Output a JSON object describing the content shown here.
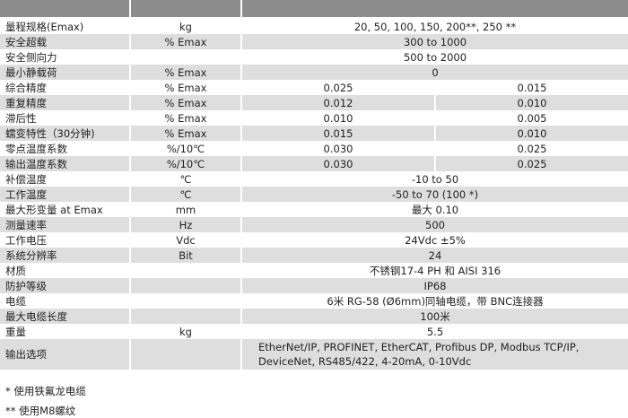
{
  "rows": [
    {
      "label": "量程规格(Emax)",
      "unit": "kg",
      "value": "20, 50, 100, 150, 200**, 250 **"
    },
    {
      "label": "安全超载",
      "unit": "% Emax",
      "value": "300 to 1000"
    },
    {
      "label": "安全侧向力",
      "unit": "",
      "value": "500 to 2000"
    },
    {
      "label": "最小静载荷",
      "unit": "% Emax",
      "value": "0"
    },
    {
      "label": "综合精度",
      "unit": "% Emax",
      "values": [
        "0.025",
        "0.015"
      ]
    },
    {
      "label": "重复精度",
      "unit": "% Emax",
      "values": [
        "0.012",
        "0.010"
      ]
    },
    {
      "label": "滞后性",
      "unit": "% Emax",
      "values": [
        "0.010",
        "0.005"
      ]
    },
    {
      "label": "蠕变特性（30分钟)",
      "unit": "% Emax",
      "values": [
        "0.015",
        "0.010"
      ]
    },
    {
      "label": "零点温度系数",
      "unit": "%/10℃",
      "values": [
        "0.030",
        "0.025"
      ]
    },
    {
      "label": "输出温度系数",
      "unit": "%/10℃",
      "values": [
        "0.030",
        "0.025"
      ]
    },
    {
      "label": "补偿温度",
      "unit": "℃",
      "value": "-10 to 50"
    },
    {
      "label": "工作温度",
      "unit": "℃",
      "value": "-50 to 70 (100 *)"
    },
    {
      "label": "最大形变量 at Emax",
      "unit": "mm",
      "value": "最大 0.10"
    },
    {
      "label": "测量速率",
      "unit": "Hz",
      "value": "500"
    },
    {
      "label": "工作电压",
      "unit": "Vdc",
      "value": "24Vdc ±5%"
    },
    {
      "label": "系统分辨率",
      "unit": "Bit",
      "value": "24"
    },
    {
      "label": "材质",
      "unit": "",
      "value": "不锈钢17-4 PH 和 AISI 316"
    },
    {
      "label": "防护等级",
      "unit": "",
      "value": "IP68"
    },
    {
      "label": "电缆",
      "unit": "",
      "value": "6米 RG-58 (Ø6mm)同轴电缆，带 BNC连接器"
    },
    {
      "label": "最大电缆长度",
      "unit": "",
      "value": "100米"
    },
    {
      "label": "重量",
      "unit": "kg",
      "value": "5.5"
    },
    {
      "label": "输出选项",
      "unit": "",
      "value": "EtherNet/IP, PROFINET, EtherCAT, Profibus DP, Modbus TCP/IP, DeviceNet, RS485/422, 4-20mA, 0-10Vdc"
    }
  ],
  "notes": [
    "* 使用铁氟龙电缆",
    "** 使用M8螺纹"
  ]
}
